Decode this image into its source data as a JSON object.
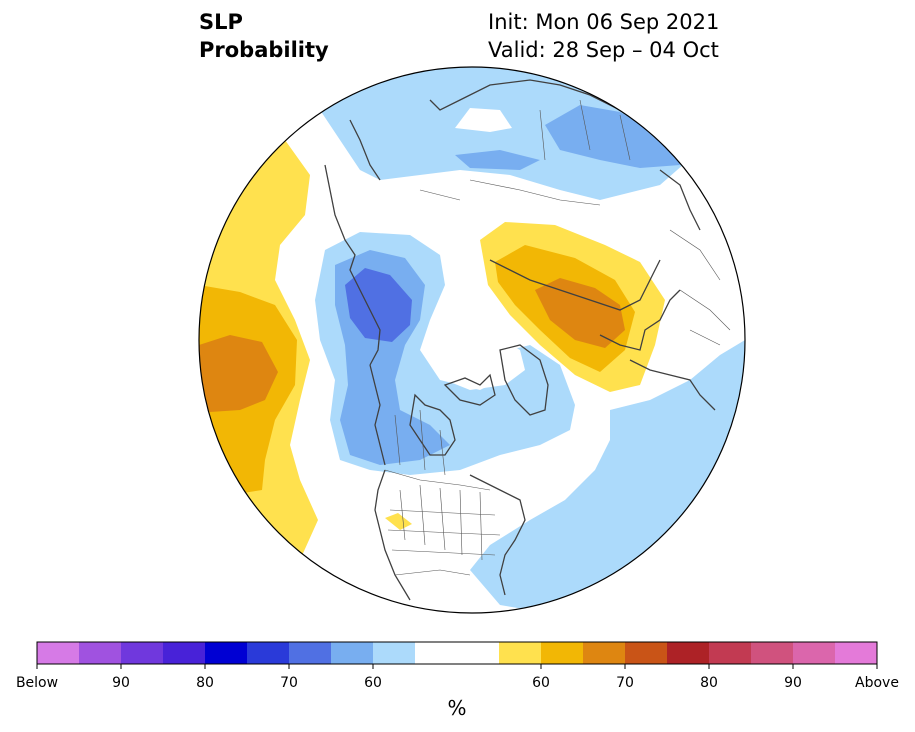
{
  "title": {
    "left_line1": "SLP",
    "left_line2": "Probability",
    "init": "Init: Mon 06 Sep 2021",
    "valid": "Valid: 28 Sep – 04 Oct"
  },
  "colorbar": {
    "colors": [
      "#d67ae6",
      "#a052e0",
      "#7038dd",
      "#4822d8",
      "#0000d3",
      "#2a3ad9",
      "#5070e3",
      "#78aef0",
      "#acdafb",
      "#ffffff",
      "#ffffff",
      "#ffe14e",
      "#f2b705",
      "#de8611",
      "#c95417",
      "#ad2226",
      "#c23a52",
      "#d0527e",
      "#db66ac",
      "#e47ad9"
    ],
    "labels": [
      "Below",
      "90",
      "80",
      "70",
      "60",
      "60",
      "70",
      "80",
      "90",
      "Above"
    ],
    "unit": "%"
  },
  "palette": {
    "light_blue": "#acdafb",
    "mid_blue": "#78aef0",
    "blue": "#5070e3",
    "light_yellow": "#ffe14e",
    "yellow": "#f2b705",
    "orange": "#de8611",
    "coast": "#404040"
  }
}
